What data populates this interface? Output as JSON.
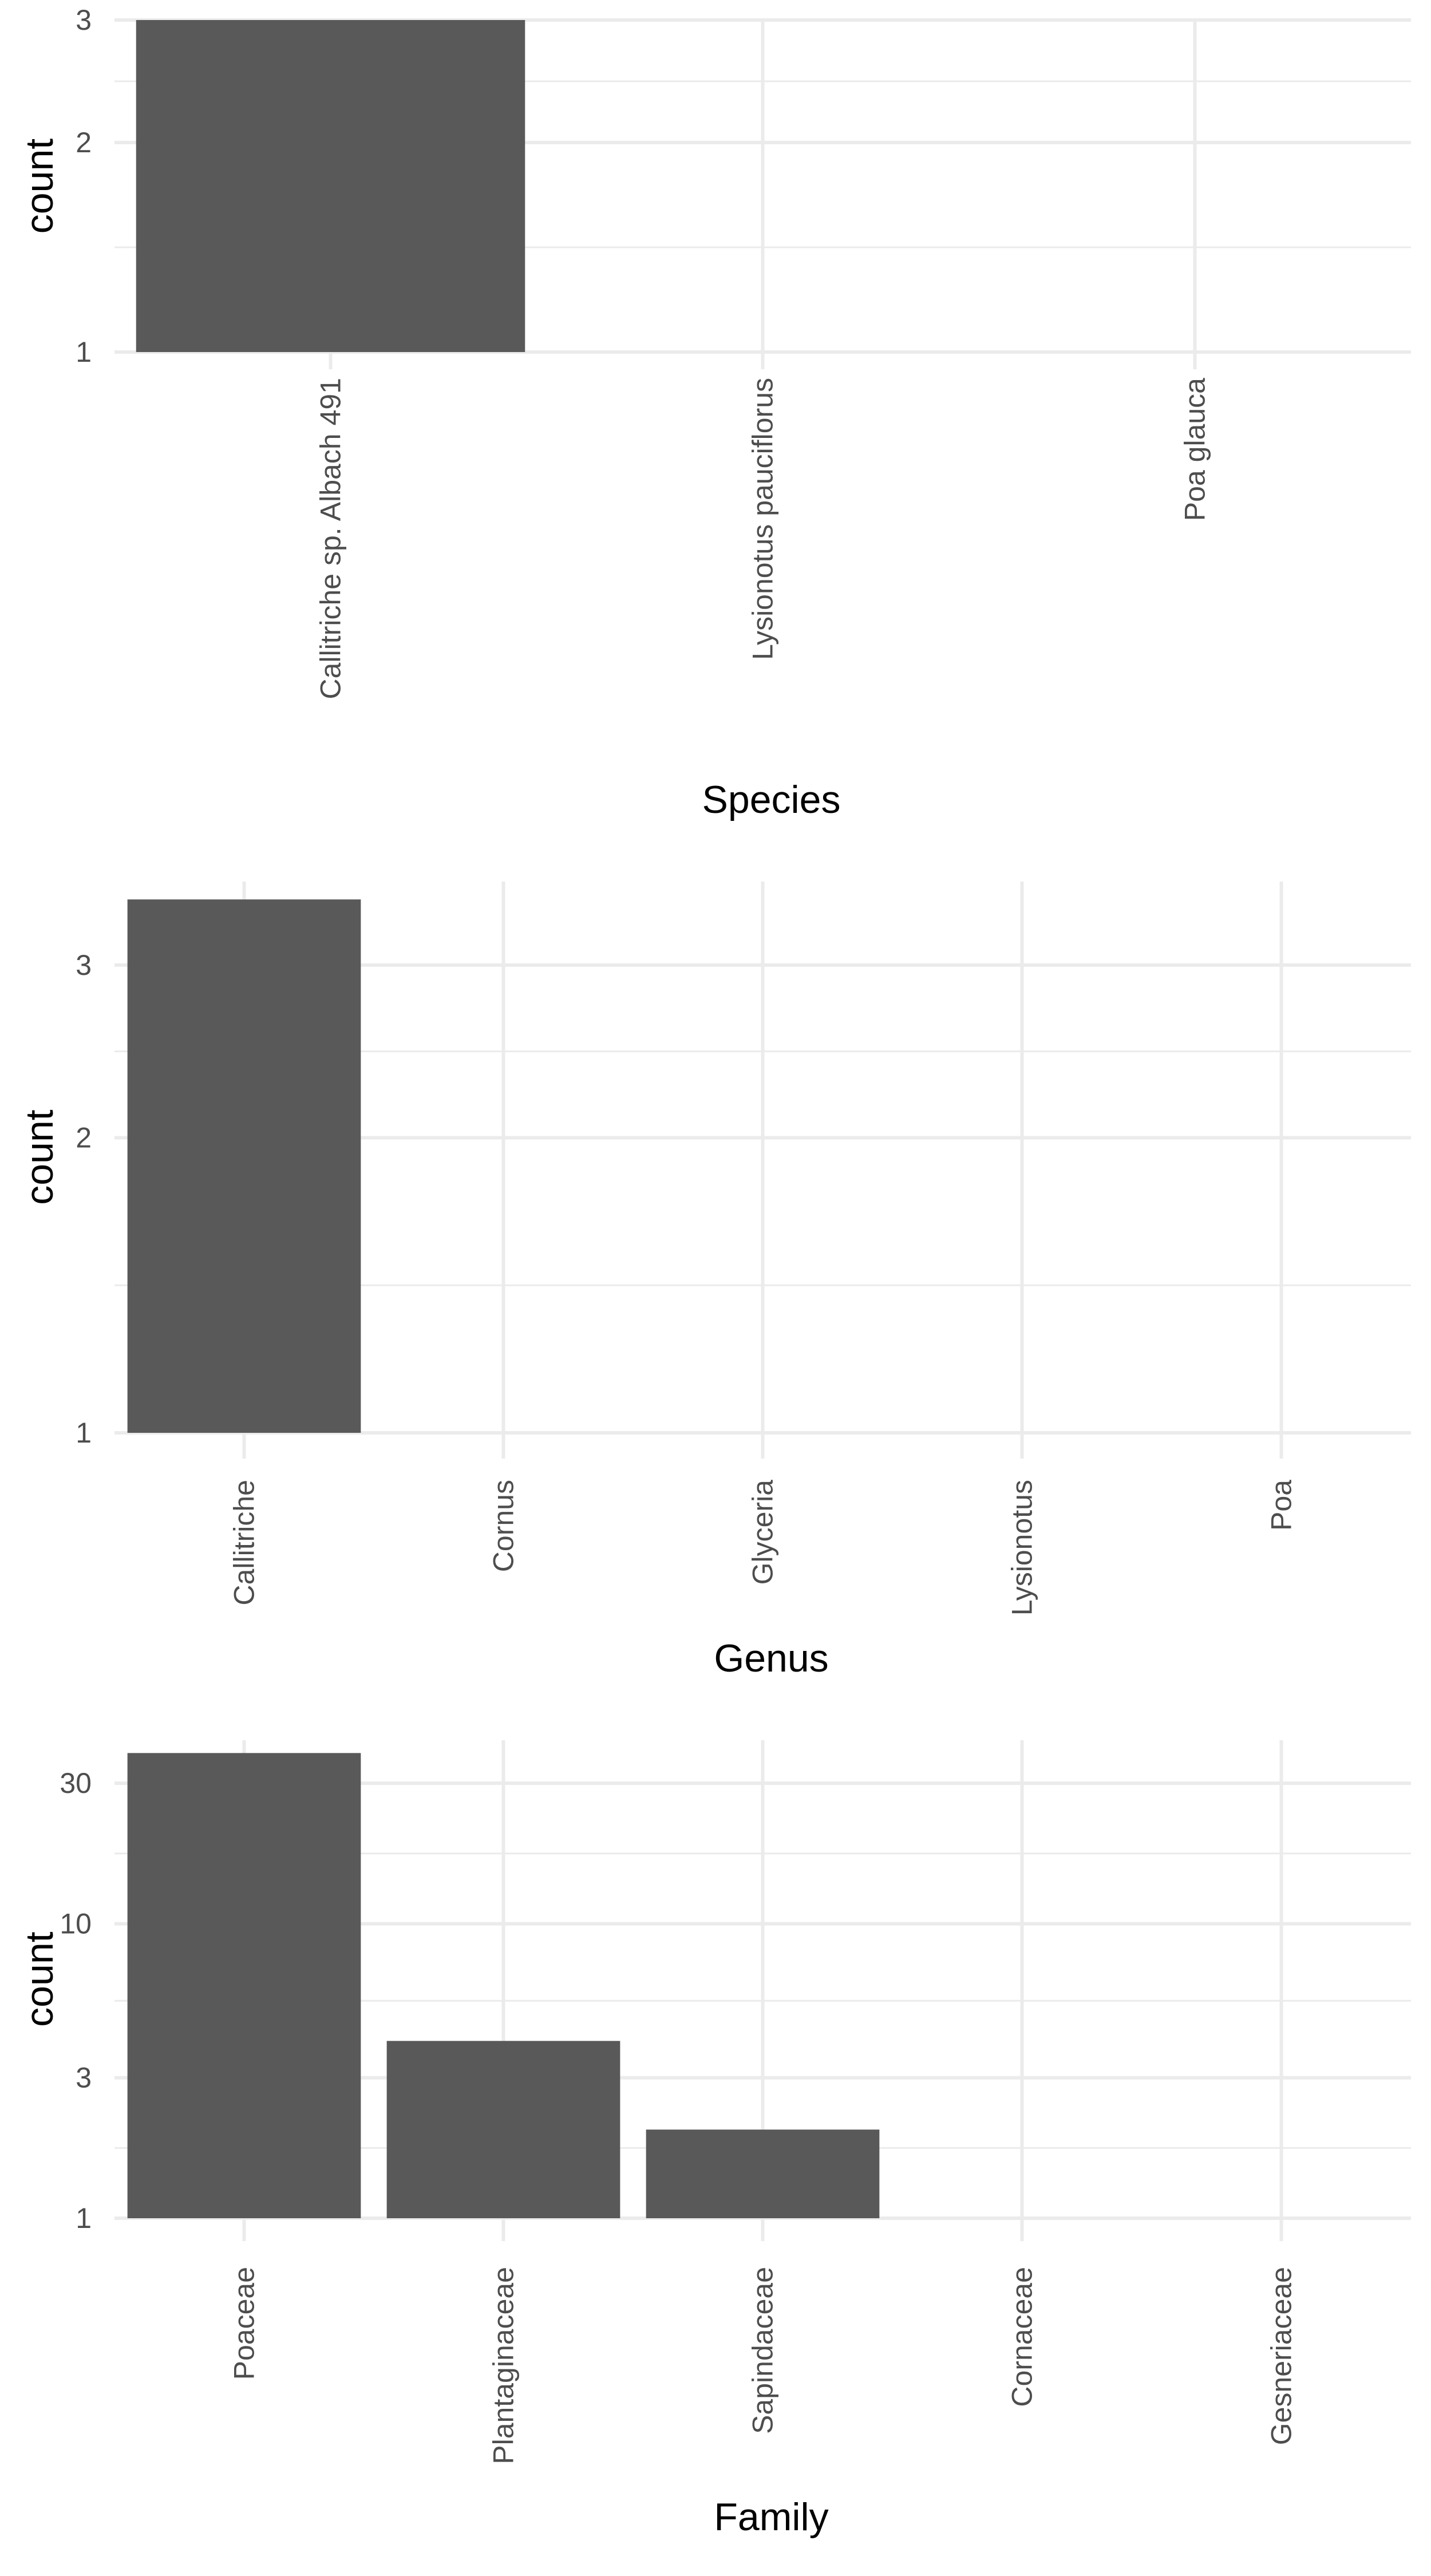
{
  "chart_data": [
    {
      "type": "bar",
      "scale": "log10",
      "categories": [
        "Callitriche sp. Albach 491",
        "Lysionotus pauciflorus",
        "Poa glauca"
      ],
      "values": [
        3,
        1,
        1
      ],
      "xlabel": "Species",
      "ylabel": "count",
      "yticks": [
        1,
        2,
        3
      ],
      "ylim": [
        1,
        3
      ],
      "grid": true,
      "bar_color": "#595959",
      "grid_color": "#ebebeb"
    },
    {
      "type": "bar",
      "scale": "log10",
      "categories": [
        "Callitriche",
        "Cornus",
        "Glyceria",
        "Lysionotus",
        "Poa"
      ],
      "values": [
        3.5,
        1,
        1,
        1,
        1
      ],
      "xlabel": "Genus",
      "ylabel": "count",
      "yticks": [
        1,
        2,
        3
      ],
      "ylim": [
        1,
        3.65
      ],
      "grid": true,
      "bar_color": "#595959",
      "grid_color": "#ebebeb"
    },
    {
      "type": "bar",
      "scale": "log10",
      "categories": [
        "Poaceae",
        "Plantaginaceae",
        "Sapindaceae",
        "Cornaceae",
        "Gesneriaceae"
      ],
      "values": [
        38,
        4,
        2,
        1,
        1
      ],
      "xlabel": "Family",
      "ylabel": "count",
      "yticks": [
        1,
        3,
        10,
        30
      ],
      "ylim": [
        1,
        42
      ],
      "grid": true,
      "bar_color": "#595959",
      "grid_color": "#ebebeb"
    }
  ]
}
